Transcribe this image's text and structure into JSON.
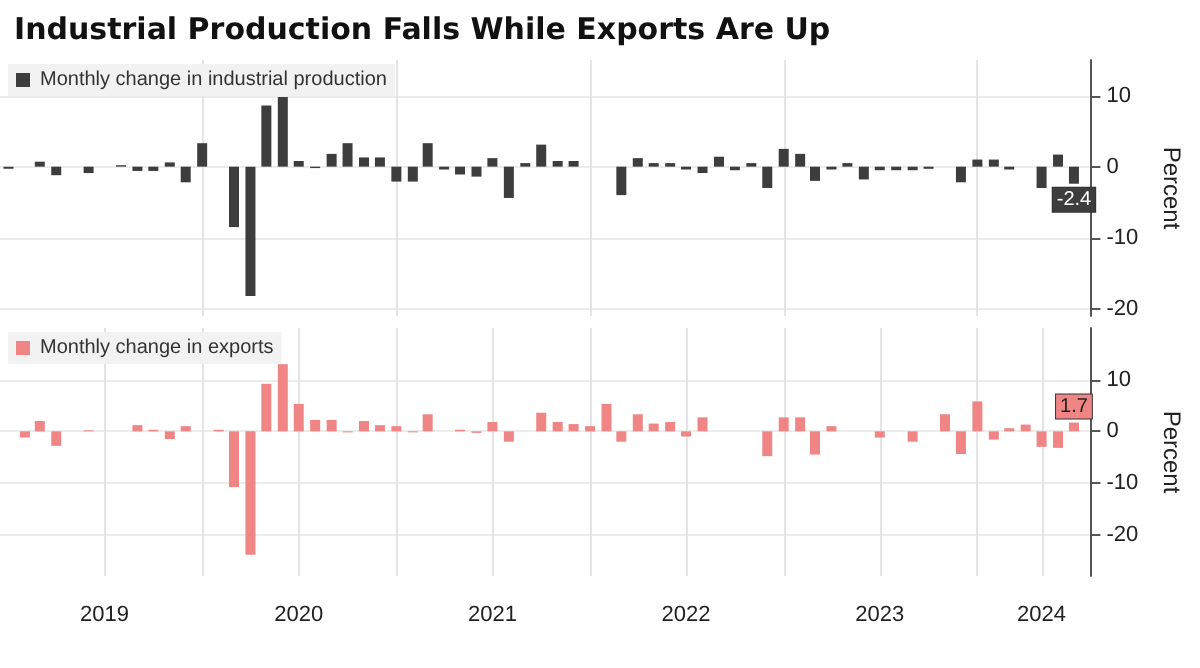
{
  "chart_data": [
    {
      "type": "bar",
      "title": "Industrial Production Falls While Exports Are Up",
      "ylabel": "Percent",
      "x": [
        "2019-01",
        "2019-02",
        "2019-03",
        "2019-04",
        "2019-05",
        "2019-06",
        "2019-07",
        "2019-08",
        "2019-09",
        "2019-10",
        "2019-11",
        "2019-12",
        "2020-01",
        "2020-02",
        "2020-03",
        "2020-04",
        "2020-05",
        "2020-06",
        "2020-07",
        "2020-08",
        "2020-09",
        "2020-10",
        "2020-11",
        "2020-12",
        "2021-01",
        "2021-02",
        "2021-03",
        "2021-04",
        "2021-05",
        "2021-06",
        "2021-07",
        "2021-08",
        "2021-09",
        "2021-10",
        "2021-11",
        "2021-12",
        "2022-01",
        "2022-02",
        "2022-03",
        "2022-04",
        "2022-05",
        "2022-06",
        "2022-07",
        "2022-08",
        "2022-09",
        "2022-10",
        "2022-11",
        "2022-12",
        "2023-01",
        "2023-02",
        "2023-03",
        "2023-04",
        "2023-05",
        "2023-06",
        "2023-07",
        "2023-08",
        "2023-09",
        "2023-10",
        "2023-11",
        "2023-12",
        "2024-01",
        "2024-02",
        "2024-03",
        "2024-04",
        "2024-05",
        "2024-06",
        "2024-07"
      ],
      "series": [
        {
          "name": "Monthly change in industrial production",
          "color": "#3d3d3d",
          "values": [
            -0.3,
            0,
            0.7,
            -1.2,
            0,
            -0.9,
            0,
            0.2,
            -0.6,
            -0.6,
            0.6,
            -2.2,
            3.3,
            0,
            -8.5,
            -18.2,
            8.6,
            9.8,
            0.8,
            -0.2,
            1.8,
            3.3,
            1.3,
            1.3,
            -2.1,
            -2.1,
            3.3,
            -0.4,
            -1.1,
            -1.4,
            1.2,
            -4.4,
            0.5,
            3.1,
            0.8,
            0.8,
            0,
            0,
            -4.0,
            1.2,
            0.5,
            0.5,
            -0.4,
            -0.9,
            1.4,
            -0.5,
            0.5,
            -3.0,
            2.5,
            1.8,
            -2.0,
            -0.4,
            0.5,
            -1.8,
            -0.5,
            -0.5,
            -0.5,
            -0.3,
            0,
            -2.2,
            1.0,
            1.0,
            -0.4,
            0,
            -3.0,
            1.7,
            -2.4
          ],
          "value_labels": [
            null,
            null,
            null,
            null,
            null,
            null,
            null,
            null,
            null,
            null,
            null,
            null,
            null,
            null,
            null,
            null,
            null,
            null,
            null,
            null,
            null,
            null,
            null,
            null,
            null,
            null,
            null,
            null,
            null,
            null,
            null,
            null,
            null,
            null,
            null,
            null,
            null,
            null,
            null,
            null,
            null,
            null,
            null,
            null,
            null,
            null,
            null,
            null,
            null,
            null,
            null,
            null,
            null,
            null,
            null,
            null,
            null,
            null,
            null,
            null,
            null,
            null,
            null,
            null,
            null,
            null,
            "-2.4"
          ]
        }
      ],
      "xlim": [
        "2018-12-16",
        "2024-08-01"
      ],
      "xticks": [
        {
          "value": "2020-01",
          "label": null
        },
        {
          "value": "2021-01",
          "label": null
        },
        {
          "value": "2022-01",
          "label": null
        },
        {
          "value": "2023-01",
          "label": null
        },
        {
          "value": "2024-01",
          "label": null
        }
      ],
      "ylim": [
        -21,
        15
      ],
      "yticks": [
        -20,
        -10,
        0,
        10
      ],
      "tick_labels": "y",
      "grid": true,
      "legend": "top left"
    },
    {
      "type": "bar",
      "ylabel": "Percent",
      "x": [
        "2019-01",
        "2019-02",
        "2019-03",
        "2019-04",
        "2019-05",
        "2019-06",
        "2019-07",
        "2019-08",
        "2019-09",
        "2019-10",
        "2019-11",
        "2019-12",
        "2020-01",
        "2020-02",
        "2020-03",
        "2020-04",
        "2020-05",
        "2020-06",
        "2020-07",
        "2020-08",
        "2020-09",
        "2020-10",
        "2020-11",
        "2020-12",
        "2021-01",
        "2021-02",
        "2021-03",
        "2021-04",
        "2021-05",
        "2021-06",
        "2021-07",
        "2021-08",
        "2021-09",
        "2021-10",
        "2021-11",
        "2021-12",
        "2022-01",
        "2022-02",
        "2022-03",
        "2022-04",
        "2022-05",
        "2022-06",
        "2022-07",
        "2022-08",
        "2022-09",
        "2022-10",
        "2022-11",
        "2022-12",
        "2023-01",
        "2023-02",
        "2023-03",
        "2023-04",
        "2023-05",
        "2023-06",
        "2023-07",
        "2023-08",
        "2023-09",
        "2023-10",
        "2023-11",
        "2023-12",
        "2024-01",
        "2024-02",
        "2024-03",
        "2024-04",
        "2024-05",
        "2024-06",
        "2024-07"
      ],
      "series": [
        {
          "name": "Monthly change in exports",
          "color": "#ef8585",
          "values": [
            0,
            -1.2,
            2.0,
            -2.8,
            0,
            0.2,
            0,
            0,
            1.2,
            0.3,
            -1.5,
            1.0,
            0,
            0.3,
            -10.8,
            -23.9,
            9.2,
            13.0,
            5.3,
            2.2,
            2.2,
            -0.2,
            2.0,
            1.2,
            1.0,
            -0.2,
            3.3,
            0,
            0.3,
            -0.3,
            1.8,
            -2.0,
            0,
            3.6,
            1.8,
            1.4,
            1.0,
            5.3,
            -2.0,
            3.3,
            1.5,
            1.8,
            -1.0,
            2.7,
            0,
            0,
            0,
            -4.8,
            2.7,
            2.7,
            -4.5,
            1.0,
            0,
            0,
            -1.2,
            0,
            -2.0,
            0,
            3.3,
            -4.4,
            5.8,
            -1.6,
            0.6,
            1.3,
            -3.0,
            -3.2,
            1.7
          ],
          "value_labels": [
            null,
            null,
            null,
            null,
            null,
            null,
            null,
            null,
            null,
            null,
            null,
            null,
            null,
            null,
            null,
            null,
            null,
            null,
            null,
            null,
            null,
            null,
            null,
            null,
            null,
            null,
            null,
            null,
            null,
            null,
            null,
            null,
            null,
            null,
            null,
            null,
            null,
            null,
            null,
            null,
            null,
            null,
            null,
            null,
            null,
            null,
            null,
            null,
            null,
            null,
            null,
            null,
            null,
            null,
            null,
            null,
            null,
            null,
            null,
            null,
            null,
            null,
            null,
            null,
            null,
            null,
            "1.7"
          ]
        }
      ],
      "xlim": [
        "2018-12-16",
        "2024-08-01"
      ],
      "xticks": [
        {
          "value": "2019-07",
          "label": "2019"
        },
        {
          "value": "2020-01",
          "label": null
        },
        {
          "value": "2020-07",
          "label": "2020"
        },
        {
          "value": "2021-01",
          "label": null
        },
        {
          "value": "2021-07",
          "label": "2021"
        },
        {
          "value": "2022-01",
          "label": null
        },
        {
          "value": "2022-07",
          "label": "2022"
        },
        {
          "value": "2023-01",
          "label": null
        },
        {
          "value": "2023-07",
          "label": "2023"
        },
        {
          "value": "2024-01",
          "label": null
        },
        {
          "value": "2024-05",
          "label": "2024"
        }
      ],
      "ylim": [
        -28,
        20
      ],
      "yticks": [
        -20,
        -10,
        0,
        10
      ],
      "grid": true,
      "legend": "top left"
    }
  ]
}
